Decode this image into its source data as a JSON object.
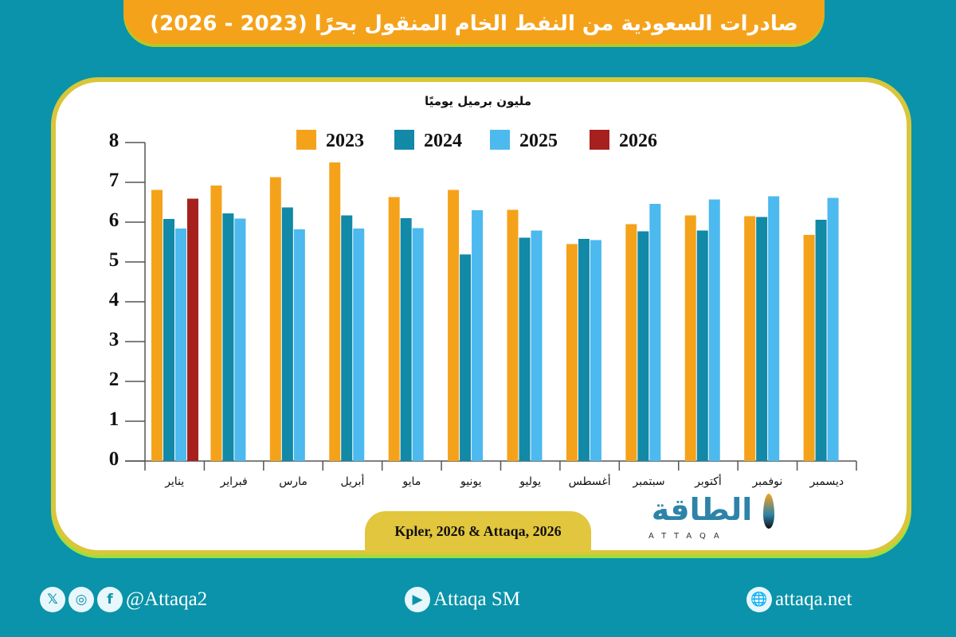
{
  "title": "صادرات السعودية من النفط الخام المنقول بحرًا (2023 - 2026)",
  "source": "Kpler, 2026 & Attaqa, 2026",
  "logo": {
    "arabic": "الطاقة",
    "latin": "ATTAQA"
  },
  "footer": {
    "social_handle": "@Attaqa2",
    "youtube": "Attaqa SM",
    "website": "attaqa.net",
    "icons": [
      "x-icon",
      "instagram-icon",
      "facebook-icon",
      "youtube-icon",
      "globe-icon"
    ]
  },
  "chart_data": {
    "type": "bar",
    "ylabel": "مليون برميل يوميًا",
    "ylim": [
      0,
      8
    ],
    "yticks": [
      "0",
      "1",
      "2",
      "3",
      "4",
      "5",
      "6",
      "7",
      "8"
    ],
    "grid": false,
    "legend_position": "top",
    "categories": [
      "يناير",
      "فبراير",
      "مارس",
      "أبريل",
      "مايو",
      "يونيو",
      "يوليو",
      "أغسطس",
      "سبتمبر",
      "أكتوبر",
      "نوفمبر",
      "ديسمبر"
    ],
    "series": [
      {
        "name": "2023",
        "color": "#f5a21b",
        "values": [
          6.81,
          6.92,
          7.13,
          7.5,
          6.63,
          6.81,
          6.31,
          5.45,
          5.95,
          6.17,
          6.15,
          5.68
        ]
      },
      {
        "name": "2024",
        "color": "#1189a7",
        "values": [
          6.08,
          6.22,
          6.37,
          6.17,
          6.1,
          5.19,
          5.61,
          5.58,
          5.77,
          5.79,
          6.13,
          6.06
        ]
      },
      {
        "name": "2025",
        "color": "#4cb9ef",
        "values": [
          5.84,
          6.09,
          5.82,
          5.84,
          5.85,
          6.3,
          5.79,
          5.55,
          6.46,
          6.57,
          6.65,
          6.61
        ]
      },
      {
        "name": "2026",
        "color": "#a6201d",
        "values": [
          6.59,
          null,
          null,
          null,
          null,
          null,
          null,
          null,
          null,
          null,
          null,
          null
        ]
      }
    ]
  }
}
